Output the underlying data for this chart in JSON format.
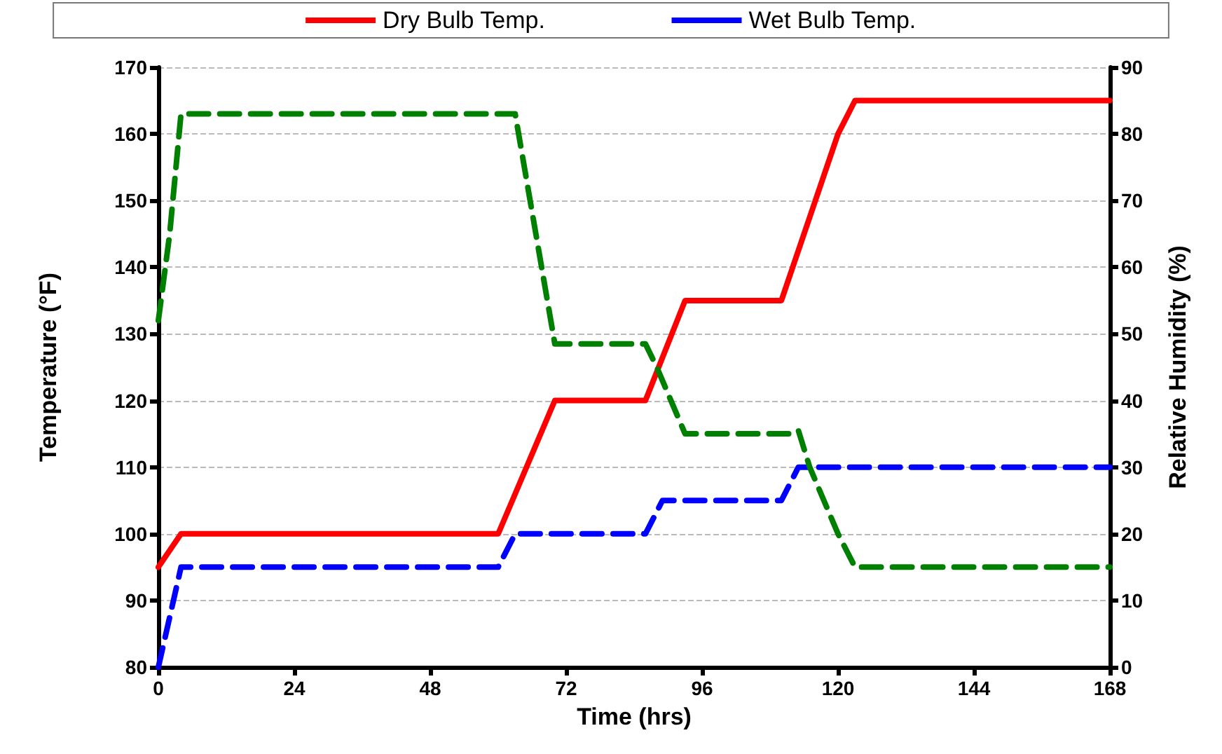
{
  "chart_data": {
    "type": "line",
    "xlabel": "Time (hrs)",
    "ylabel": "Temperature (°F)",
    "y2label": "Relative Humidity (%)",
    "xlim": [
      0,
      168
    ],
    "xticks": [
      0,
      24,
      48,
      72,
      96,
      120,
      144,
      168
    ],
    "ylim": [
      80,
      170
    ],
    "yticks": [
      80,
      90,
      100,
      110,
      120,
      130,
      140,
      150,
      160,
      170
    ],
    "y2lim": [
      0,
      90
    ],
    "y2ticks": [
      0,
      10,
      20,
      30,
      40,
      50,
      60,
      70,
      80,
      90
    ],
    "grid": "y",
    "legend": "top",
    "marker": "none",
    "series": [
      {
        "name": "Dry Bulb Temp.",
        "color": "#ff0000",
        "line_style": "solid",
        "x": [
          0,
          4,
          60,
          63,
          70,
          86,
          93,
          110,
          112,
          120,
          123,
          168
        ],
        "values": [
          95,
          100,
          100,
          106,
          120,
          120,
          135,
          135,
          140,
          160,
          165,
          165
        ]
      },
      {
        "name": "Wet Bulb Temp.",
        "color": "#0000ff",
        "line_style": "dashed",
        "x": [
          0,
          4,
          60,
          63,
          86,
          89,
          110,
          113,
          168
        ],
        "values": [
          80,
          95,
          95,
          100,
          100,
          105,
          105,
          110,
          110
        ]
      },
      {
        "color": "#008000",
        "line_style": "dashed",
        "axis": "y2",
        "x": [
          0,
          2,
          4,
          63,
          70,
          86,
          88,
          93,
          112,
          113,
          115,
          120,
          123,
          125,
          168
        ],
        "values": [
          52,
          65,
          83,
          83,
          48.5,
          48.5,
          45,
          35,
          35,
          35.5,
          30,
          20,
          15,
          15,
          15
        ]
      }
    ]
  }
}
